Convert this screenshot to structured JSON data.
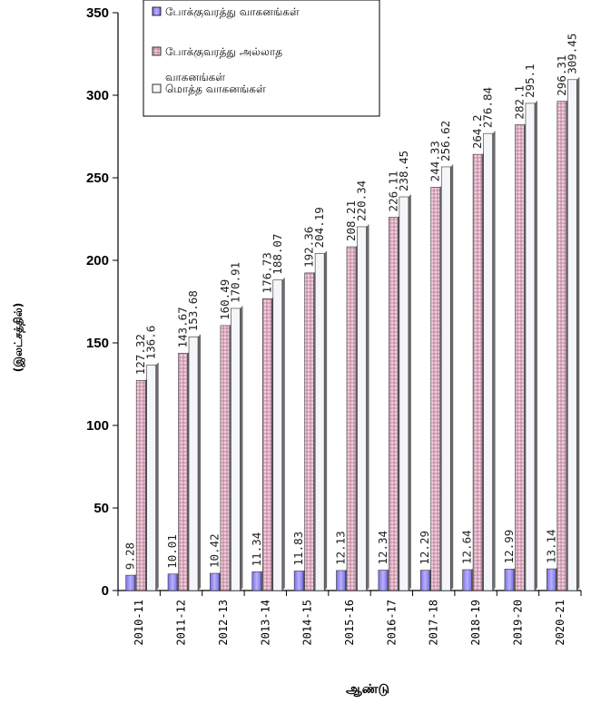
{
  "chart_data": {
    "type": "bar",
    "title": "",
    "xlabel": "ஆண்டு",
    "ylabel": "(இலட்சத்தில்)",
    "ylim": [
      0,
      350
    ],
    "yticks": [
      0,
      50,
      100,
      150,
      200,
      250,
      300,
      350
    ],
    "grid": false,
    "legend_position": "top-right",
    "categories": [
      "2010-11",
      "2011-12",
      "2012-13",
      "2013-14",
      "2014-15",
      "2015-16",
      "2016-17",
      "2017-18",
      "2018-19",
      "2019-20",
      "2020-21"
    ],
    "series": [
      {
        "name": "போக்குவரத்து வாகனங்கள்",
        "color": "#9b8ef0",
        "values": [
          9.28,
          10.01,
          10.42,
          11.34,
          11.83,
          12.13,
          12.34,
          12.29,
          12.64,
          12.99,
          13.14
        ],
        "labels": [
          "9.28",
          "10.01",
          "10.42",
          "11.34",
          "11.83",
          "12.13",
          "12.34",
          "12.29",
          "12.64",
          "12.99",
          "13.14"
        ]
      },
      {
        "name": "போக்குவரத்து அல்லாத வாகனங்கள்",
        "color": "#e8b4c8",
        "values": [
          127.32,
          143.67,
          160.49,
          176.73,
          192.36,
          208.21,
          226.11,
          244.33,
          264.2,
          282.1,
          296.31
        ],
        "labels": [
          "127.32",
          "143.67",
          "160.49",
          "176.73",
          "192.36",
          "208.21",
          "226.11",
          "244.33",
          "264.2",
          "282.1",
          "296.31"
        ]
      },
      {
        "name": "மொத்த வாகனங்கள்",
        "color": "#f2f4f8",
        "values": [
          136.6,
          153.68,
          170.91,
          188.07,
          204.19,
          220.34,
          238.45,
          256.62,
          276.84,
          295.1,
          309.45
        ],
        "labels": [
          "136.6",
          "153.68",
          "170.91",
          "188.07",
          "204.19",
          "220.34",
          "238.45",
          "256.62",
          "276.84",
          "295.1",
          "309.45"
        ]
      }
    ]
  }
}
